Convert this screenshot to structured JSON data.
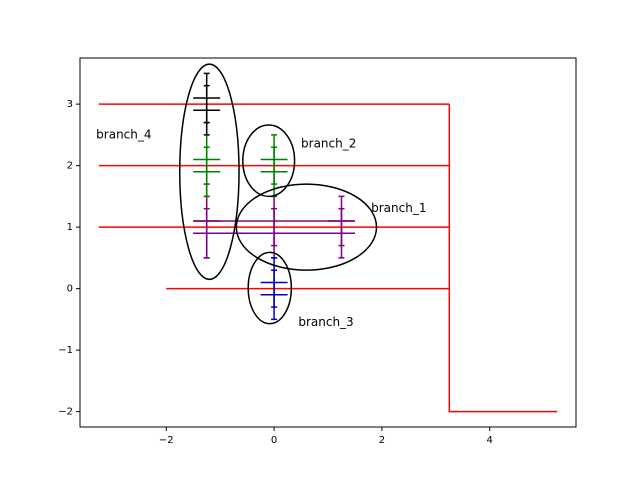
{
  "chart_data": {
    "type": "line",
    "title": "",
    "xlabel": "",
    "ylabel": "",
    "xlim": [
      -3.6,
      5.6
    ],
    "ylim": [
      -2.25,
      3.75
    ],
    "x_ticks": [
      {
        "value": -2,
        "label": "−2"
      },
      {
        "value": 0,
        "label": "0"
      },
      {
        "value": 2,
        "label": "2"
      },
      {
        "value": 4,
        "label": "4"
      }
    ],
    "y_ticks": [
      {
        "value": -2,
        "label": "−2"
      },
      {
        "value": -1,
        "label": "−1"
      },
      {
        "value": 0,
        "label": "0"
      },
      {
        "value": 1,
        "label": "1"
      },
      {
        "value": 2,
        "label": "2"
      },
      {
        "value": 3,
        "label": "3"
      }
    ],
    "grid": false,
    "colors": {
      "lines": "#ff0000",
      "branch_1": "#800080",
      "branch_2": "#008000",
      "branch_3": "#0000cc",
      "branch_4": "#000000",
      "ellipse": "#000000"
    },
    "line_segments": [
      {
        "points": [
          [
            -3.25,
            3
          ],
          [
            3.25,
            3
          ]
        ]
      },
      {
        "points": [
          [
            -3.25,
            2
          ],
          [
            3.25,
            2
          ]
        ]
      },
      {
        "points": [
          [
            -3.25,
            1
          ],
          [
            3.25,
            1
          ]
        ]
      },
      {
        "points": [
          [
            -2,
            0
          ],
          [
            3.25,
            0
          ]
        ]
      },
      {
        "points": [
          [
            3.25,
            3
          ],
          [
            3.25,
            -2
          ],
          [
            5.25,
            -2
          ]
        ]
      }
    ],
    "error_bars": [
      {
        "group": "branch_1",
        "x": -1.25,
        "y": 1.1,
        "yerr": 0.6,
        "xerr": 0.25
      },
      {
        "group": "branch_1",
        "x": 1.25,
        "y": 1.1,
        "yerr": 0.4,
        "xerr": 0.25
      },
      {
        "group": "branch_1",
        "x": 0,
        "y": 0.9,
        "yerr": 0.4,
        "xerr": 1.5
      },
      {
        "group": "branch_1",
        "x": -1.25,
        "y": 0.9,
        "yerr": 0.4,
        "xerr": 0.25
      },
      {
        "group": "branch_1",
        "x": 1.25,
        "y": 0.9,
        "yerr": 0.4,
        "xerr": 0.25
      },
      {
        "group": "branch_1",
        "x": 0,
        "y": 1.1,
        "yerr": 0.4,
        "xerr": 1.5
      },
      {
        "group": "branch_2",
        "x": -1.25,
        "y": 2.1,
        "yerr": 0.6,
        "xerr": 0.25
      },
      {
        "group": "branch_2",
        "x": -1.25,
        "y": 1.9,
        "yerr": 0.4,
        "xerr": 0.25
      },
      {
        "group": "branch_2",
        "x": 0,
        "y": 2.1,
        "yerr": 0.4,
        "xerr": 0.25
      },
      {
        "group": "branch_2",
        "x": 0,
        "y": 1.9,
        "yerr": 0.4,
        "xerr": 0.25
      },
      {
        "group": "branch_3",
        "x": 0,
        "y": 0.1,
        "yerr": 0.4,
        "xerr": 0.25
      },
      {
        "group": "branch_3",
        "x": 0,
        "y": -0.1,
        "yerr": 0.4,
        "xerr": 0.25
      },
      {
        "group": "branch_4",
        "x": -1.25,
        "y": 3.1,
        "yerr": 0.4,
        "xerr": 0.25
      },
      {
        "group": "branch_4",
        "x": -1.25,
        "y": 2.9,
        "yerr": 0.4,
        "xerr": 0.25
      }
    ],
    "ellipses": [
      {
        "name": "branch_1",
        "cx": 0.6,
        "cy": 1,
        "rx": 1.3,
        "ry": 0.7
      },
      {
        "name": "branch_2",
        "cx": -0.1,
        "cy": 2.08,
        "rx": 0.48,
        "ry": 0.58
      },
      {
        "name": "branch_3",
        "cx": -0.08,
        "cy": 0.01,
        "rx": 0.4,
        "ry": 0.58
      },
      {
        "name": "branch_4",
        "cx": -1.2,
        "cy": 1.9,
        "rx": 0.55,
        "ry": 1.75
      }
    ],
    "annotations": [
      {
        "text": "branch_1",
        "x": 1.8,
        "y": 1.3
      },
      {
        "text": "branch_2",
        "x": 0.5,
        "y": 2.35
      },
      {
        "text": "branch_3",
        "x": 0.45,
        "y": -0.55
      },
      {
        "text": "branch_4",
        "x": -3.3,
        "y": 2.5
      }
    ]
  }
}
